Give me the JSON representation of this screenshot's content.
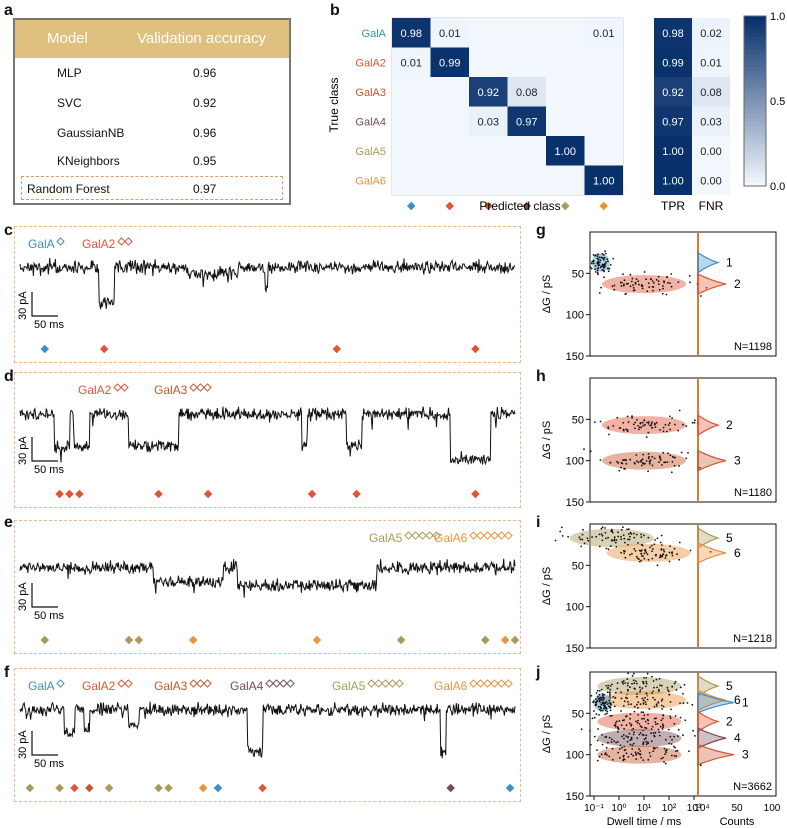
{
  "panel_letters": {
    "a": "a",
    "b": "b",
    "c": "c",
    "d": "d",
    "e": "e",
    "f": "f",
    "g": "g",
    "h": "h",
    "i": "i",
    "j": "j"
  },
  "colors": {
    "GalA": "#3a8fc7",
    "GalA2": "#e05535",
    "GalA3": "#c8572f",
    "GalA4": "#7a4a52",
    "GalA5": "#a89a5a",
    "GalA6": "#e8933a",
    "header": "#e0c07e",
    "trace": "#111111"
  },
  "chart_data": [
    {
      "type": "table",
      "panel": "a",
      "columns": [
        "Model",
        "Validation accuracy"
      ],
      "rows": [
        {
          "model": "MLP",
          "acc": "0.96"
        },
        {
          "model": "SVC",
          "acc": "0.92"
        },
        {
          "model": "GaussianNB",
          "acc": "0.96"
        },
        {
          "model": "KNeighbors",
          "acc": "0.95"
        },
        {
          "model": "Random Forest",
          "acc": "0.97"
        }
      ]
    },
    {
      "type": "heatmap",
      "panel": "b",
      "classes": [
        "GalA",
        "GalA2",
        "GalA3",
        "GalA4",
        "GalA5",
        "GalA6"
      ],
      "ylabel": "True class",
      "xlabel": "Predicted class",
      "matrix": [
        [
          0.98,
          0.01,
          0,
          0,
          0,
          0.01
        ],
        [
          0.01,
          0.99,
          0,
          0,
          0,
          0
        ],
        [
          0,
          0,
          0.92,
          0.08,
          0,
          0
        ],
        [
          0,
          0,
          0.03,
          0.97,
          0,
          0
        ],
        [
          0,
          0,
          0,
          0,
          1.0,
          0
        ],
        [
          0,
          0,
          0,
          0,
          0,
          1.0
        ]
      ],
      "labels": [
        [
          "0.98",
          "0.01",
          "",
          "",
          "",
          "0.01"
        ],
        [
          "0.01",
          "0.99",
          "",
          "",
          "",
          ""
        ],
        [
          "",
          "",
          "0.92",
          "0.08",
          "",
          ""
        ],
        [
          "",
          "",
          "0.03",
          "0.97",
          "",
          ""
        ],
        [
          "",
          "",
          "",
          "",
          "1.00",
          ""
        ],
        [
          "",
          "",
          "",
          "",
          "",
          "1.00"
        ]
      ],
      "side_columns": [
        "TPR",
        "FNR"
      ],
      "tpr": [
        "0.98",
        "0.99",
        "0.92",
        "0.97",
        "1.00",
        "1.00"
      ],
      "fnr": [
        "0.02",
        "0.01",
        "0.08",
        "0.03",
        "0.00",
        "0.00"
      ],
      "colorbar_ticks": [
        "1.0",
        "0.5",
        "0.0"
      ]
    },
    {
      "type": "line",
      "panel": "c",
      "legend": [
        {
          "name": "GalA",
          "cls": "GalA",
          "n": 1
        },
        {
          "name": "GalA2",
          "cls": "GalA2",
          "n": 2
        }
      ],
      "scalebar_y": "30 pA",
      "scalebar_x": "50 ms",
      "baseline": 0.18,
      "events": [
        [
          0.16,
          0.19,
          0.75
        ],
        [
          0.34,
          0.44,
          0.28
        ],
        [
          0.495,
          0.5,
          0.55
        ]
      ],
      "markers": [
        [
          "GalA",
          0.05
        ],
        [
          "GalA2",
          0.17
        ],
        [
          "GalA2",
          0.64
        ],
        [
          "GalA2",
          0.92
        ]
      ]
    },
    {
      "type": "line",
      "panel": "d",
      "legend": [
        {
          "name": "GalA2",
          "cls": "GalA2",
          "n": 2
        },
        {
          "name": "GalA3",
          "cls": "GalA3",
          "n": 3
        }
      ],
      "scalebar_y": "30 pA",
      "scalebar_x": "50 ms",
      "baseline": 0.2,
      "events": [
        [
          0.07,
          0.1,
          0.75
        ],
        [
          0.11,
          0.14,
          0.72
        ],
        [
          0.22,
          0.32,
          0.72
        ],
        [
          0.57,
          0.58,
          0.72
        ],
        [
          0.66,
          0.69,
          0.72
        ],
        [
          0.87,
          0.95,
          0.95
        ]
      ],
      "markers": [
        [
          "GalA2",
          0.08
        ],
        [
          "GalA2",
          0.1
        ],
        [
          "GalA2",
          0.12
        ],
        [
          "GalA2",
          0.28
        ],
        [
          "GalA2",
          0.38
        ],
        [
          "GalA2",
          0.59
        ],
        [
          "GalA2",
          0.68
        ],
        [
          "GalA2",
          0.92
        ]
      ]
    },
    {
      "type": "line",
      "panel": "e",
      "legend": [
        {
          "name": "GalA5",
          "cls": "GalA5",
          "n": 5
        },
        {
          "name": "GalA6",
          "cls": "GalA6",
          "n": 6
        }
      ],
      "scalebar_y": "30 pA",
      "scalebar_x": "50 ms",
      "baseline": 0.3,
      "events": [
        [
          0.27,
          0.41,
          0.55
        ],
        [
          0.44,
          0.72,
          0.6
        ]
      ],
      "markers": [
        [
          "GalA5",
          0.05
        ],
        [
          "GalA5",
          0.22
        ],
        [
          "GalA5",
          0.24
        ],
        [
          "GalA6",
          0.35
        ],
        [
          "GalA6",
          0.6
        ],
        [
          "GalA5",
          0.77
        ],
        [
          "GalA5",
          0.94
        ],
        [
          "GalA6",
          0.98
        ],
        [
          "GalA5",
          1.0
        ]
      ]
    },
    {
      "type": "line",
      "panel": "f",
      "legend": [
        {
          "name": "GalA",
          "cls": "GalA",
          "n": 1
        },
        {
          "name": "GalA2",
          "cls": "GalA2",
          "n": 2
        },
        {
          "name": "GalA3",
          "cls": "GalA3",
          "n": 3
        },
        {
          "name": "GalA4",
          "cls": "GalA4",
          "n": 4
        },
        {
          "name": "GalA5",
          "cls": "GalA5",
          "n": 5
        },
        {
          "name": "GalA6",
          "cls": "GalA6",
          "n": 6
        }
      ],
      "scalebar_y": "30 pA",
      "scalebar_x": "50 ms",
      "baseline": 0.2,
      "events": [
        [
          0.09,
          0.11,
          0.6
        ],
        [
          0.13,
          0.14,
          0.55
        ],
        [
          0.22,
          0.24,
          0.5
        ],
        [
          0.46,
          0.49,
          0.92
        ],
        [
          0.85,
          0.86,
          0.9
        ]
      ],
      "markers": [
        [
          "GalA5",
          0.02
        ],
        [
          "GalA5",
          0.08
        ],
        [
          "GalA2",
          0.11
        ],
        [
          "GalA3",
          0.14
        ],
        [
          "GalA5",
          0.18
        ],
        [
          "GalA5",
          0.28
        ],
        [
          "GalA5",
          0.3
        ],
        [
          "GalA6",
          0.37
        ],
        [
          "GalA",
          0.4
        ],
        [
          "GalA2",
          0.49
        ],
        [
          "GalA4",
          0.87
        ],
        [
          "GalA",
          0.99
        ]
      ]
    },
    {
      "type": "scatter",
      "panel": "g",
      "ylabel": "ΔG / pS",
      "y_ticks": [
        "50",
        "100",
        "150"
      ],
      "ylim": [
        150,
        0
      ],
      "clusters": [
        {
          "cls": "GalA",
          "x": 0.03,
          "y": 37,
          "n": "1"
        },
        {
          "cls": "GalA2",
          "x": 0.5,
          "y": 63,
          "n": "2"
        }
      ],
      "count_label": "N=1198"
    },
    {
      "type": "scatter",
      "panel": "h",
      "ylabel": "ΔG / pS",
      "y_ticks": [
        "50",
        "100",
        "150"
      ],
      "ylim": [
        150,
        0
      ],
      "clusters": [
        {
          "cls": "GalA2",
          "x": 0.5,
          "y": 57,
          "n": "2"
        },
        {
          "cls": "GalA3",
          "x": 0.5,
          "y": 100,
          "n": "3"
        }
      ],
      "count_label": "N=1180"
    },
    {
      "type": "scatter",
      "panel": "i",
      "ylabel": "ΔG / pS",
      "y_ticks": [
        "50",
        "100",
        "150"
      ],
      "ylim": [
        150,
        0
      ],
      "clusters": [
        {
          "cls": "GalA5",
          "x": 0.15,
          "y": 17,
          "n": "5"
        },
        {
          "cls": "GalA6",
          "x": 0.55,
          "y": 35,
          "n": "6"
        }
      ],
      "count_label": "N=1218"
    },
    {
      "type": "scatter",
      "panel": "j",
      "ylabel": "ΔG / pS",
      "y_ticks": [
        "50",
        "100",
        "150"
      ],
      "ylim": [
        150,
        0
      ],
      "x_ticks": [
        "10⁻¹",
        "10⁰",
        "10¹",
        "10²",
        "10³"
      ],
      "hist_ticks": [
        "10⁴",
        "50",
        "100"
      ],
      "xlabel": "Dwell time / ms",
      "hist_xlabel": "Counts",
      "clusters": [
        {
          "cls": "GalA5",
          "x": 0.45,
          "y": 17,
          "n": "5"
        },
        {
          "cls": "GalA6",
          "x": 0.5,
          "y": 34,
          "n": "6"
        },
        {
          "cls": "GalA",
          "x": 0.05,
          "y": 37,
          "n": "1"
        },
        {
          "cls": "GalA2",
          "x": 0.45,
          "y": 60,
          "n": "2"
        },
        {
          "cls": "GalA4",
          "x": 0.45,
          "y": 80,
          "n": "4"
        },
        {
          "cls": "GalA3",
          "x": 0.45,
          "y": 100,
          "n": "3"
        }
      ],
      "count_label": "N=3662"
    }
  ]
}
